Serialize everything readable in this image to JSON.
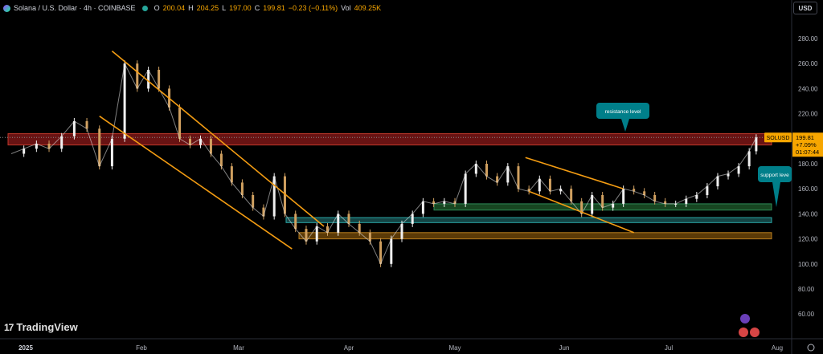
{
  "header": {
    "title": "Solana / U.S. Dollar · 4h · COINBASE",
    "o_label": "O",
    "o_value": "200.04",
    "h_label": "H",
    "h_value": "204.25",
    "l_label": "L",
    "l_value": "197.00",
    "c_label": "C",
    "c_value": "199.81",
    "change": "−0.23 (−0.11%)",
    "vol_label": "Vol",
    "vol_value": "409.25K"
  },
  "currency_button": "USD",
  "logo_text": "TradingView",
  "price_tag": {
    "symbol": "SOLUSD",
    "price": "199.81",
    "change": "+7.09%",
    "countdown": "01:07:44"
  },
  "annotations": {
    "resistance": "resistance level",
    "support": "support leve"
  },
  "colors": {
    "background": "#000000",
    "up_candle": "#f0f0f0",
    "down_candle": "#d0a060",
    "trendline": "#f39c12",
    "resistance_zone": "#8b1a1a",
    "support_zone_green": "#1f5e2c",
    "support_zone_teal": "#1b5a5a",
    "support_zone_orange": "#7a4d0a",
    "callout": "#007f8a",
    "price_tag": "#f7a600"
  },
  "chart_data": {
    "type": "line",
    "title": "Solana / U.S. Dollar · 4h · COINBASE",
    "xlabel": "",
    "ylabel": "",
    "x_ticks": [
      "2025",
      "Feb",
      "Mar",
      "Apr",
      "May",
      "Jun",
      "Jul",
      "Aug"
    ],
    "y_ticks": [
      280,
      260,
      240,
      220,
      200,
      180,
      160,
      140,
      120,
      100,
      80,
      60
    ],
    "y_tick_labels": [
      "280.00",
      "260.00",
      "240.00",
      "220.00",
      "200.00",
      "180.00",
      "160.00",
      "140.00",
      "120.00",
      "100.00",
      "80.00",
      "60.00"
    ],
    "ylim": [
      44,
      300
    ],
    "x_unit": "day index from 2025-01-01",
    "x": [
      0,
      3,
      6,
      9,
      12,
      15,
      18,
      21,
      24,
      27,
      30,
      33,
      36,
      39,
      42,
      45,
      48,
      51,
      54,
      57,
      60,
      63,
      66,
      69,
      72,
      75,
      78,
      81,
      84,
      87,
      90,
      93,
      96,
      99,
      102,
      105,
      108,
      111,
      114,
      117,
      120,
      123,
      126,
      129,
      132,
      135,
      138,
      141,
      144,
      147,
      150,
      153,
      156,
      159,
      162,
      165,
      168,
      171,
      174,
      177,
      180,
      183,
      186,
      189,
      192,
      195,
      198,
      201,
      204,
      206
    ],
    "series": [
      {
        "values": [
          188,
          192,
          196,
          192,
          202,
          214,
          208,
          178,
          200,
          260,
          240,
          255,
          240,
          225,
          200,
          195,
          200,
          188,
          178,
          165,
          155,
          145,
          138,
          170,
          140,
          128,
          118,
          130,
          125,
          140,
          132,
          125,
          118,
          100,
          120,
          132,
          140,
          150,
          148,
          150,
          148,
          172,
          180,
          170,
          165,
          178,
          160,
          158,
          168,
          158,
          160,
          150,
          140,
          155,
          145,
          148,
          160,
          158,
          155,
          150,
          148,
          148,
          152,
          155,
          162,
          170,
          172,
          178,
          190,
          201
        ]
      }
    ],
    "resistance_zone": [
      195,
      204
    ],
    "support_zones": [
      [
        143,
        148
      ],
      [
        133,
        137
      ],
      [
        120,
        125
      ]
    ],
    "trend_channels": [
      {
        "line_a": [
          [
            21,
            218
          ],
          [
            74,
            112
          ]
        ],
        "line_b": [
          [
            24,
            270
          ],
          [
            83,
            130
          ]
        ]
      },
      {
        "line_a": [
          [
            140,
            185
          ],
          [
            168,
            160
          ]
        ],
        "line_b": [
          [
            141,
            158
          ],
          [
            171,
            125
          ]
        ]
      }
    ]
  }
}
